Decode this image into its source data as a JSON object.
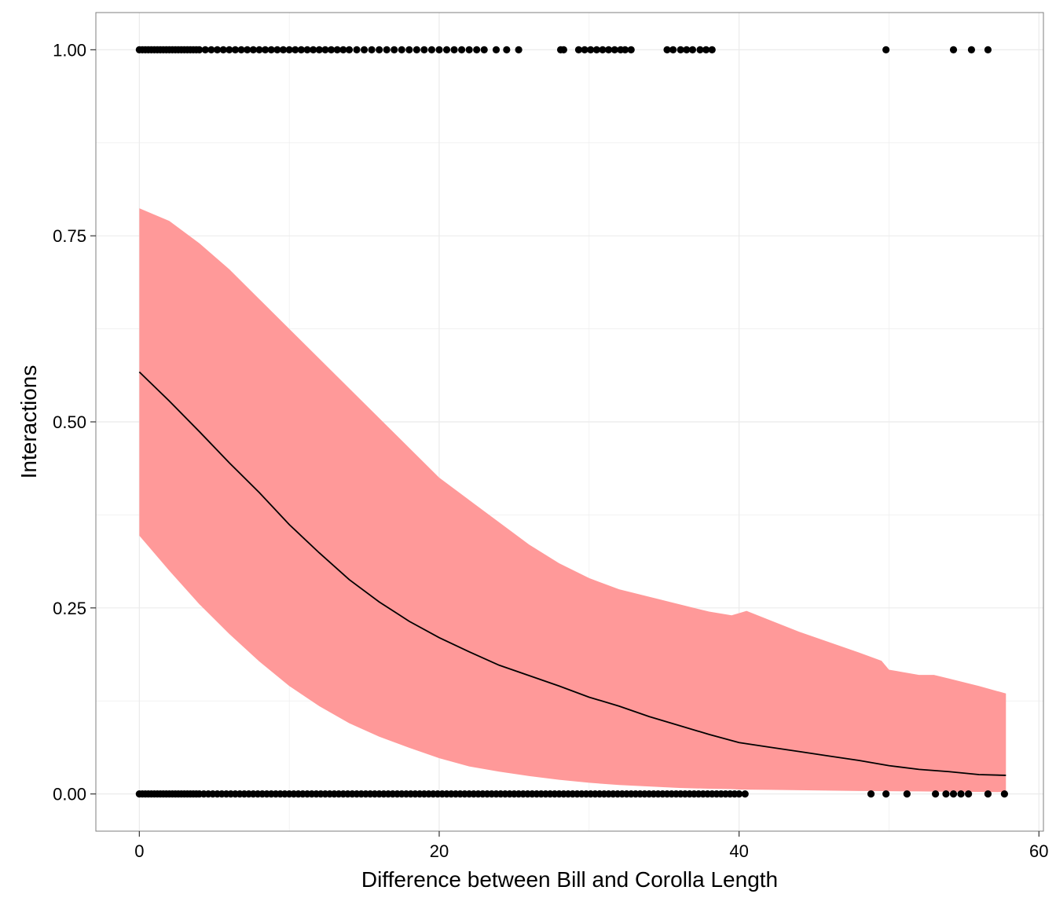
{
  "chart_data": {
    "type": "scatter",
    "title": "",
    "xlabel": "Difference between Bill and Corolla Length",
    "ylabel": "Interactions",
    "xlim": [
      -2.9,
      60.3
    ],
    "ylim": [
      -0.05,
      1.05
    ],
    "x_ticks": [
      0,
      20,
      40,
      60
    ],
    "x_tick_labels": [
      "0",
      "20",
      "40",
      "60"
    ],
    "y_ticks": [
      0,
      0.25,
      0.5,
      0.75,
      1.0
    ],
    "y_tick_labels": [
      "0.00",
      "0.25",
      "0.50",
      "0.75",
      "1.00"
    ],
    "grid": true,
    "legend": "none",
    "colors": {
      "ribbon": "#ff9999",
      "line": "#000000",
      "points": "#000000",
      "grid": "#ebebeb",
      "border": "#7f7f7f"
    },
    "series": [
      {
        "kind": "points",
        "y": 1,
        "x": [
          0,
          0.2,
          0.4,
          0.6,
          0.8,
          1,
          1.2,
          1.4,
          1.6,
          1.8,
          2,
          2.2,
          2.4,
          2.6,
          2.8,
          3,
          3.2,
          3.4,
          3.6,
          3.8,
          4,
          4.4,
          4.8,
          5.2,
          5.6,
          6,
          6.4,
          6.8,
          7.2,
          7.6,
          8,
          8.4,
          8.8,
          9.2,
          9.6,
          10,
          10.4,
          10.8,
          11.2,
          11.6,
          12,
          12.4,
          12.8,
          13.2,
          13.6,
          14,
          14.5,
          15,
          15.5,
          16,
          16.5,
          17,
          17.5,
          18,
          18.5,
          19,
          19.5,
          20,
          20.5,
          21,
          21.5,
          22,
          22.5,
          23,
          23.8,
          24.5,
          25.3,
          28.1,
          28.3,
          29.3,
          29.7,
          30.1,
          30.5,
          30.9,
          31.3,
          31.7,
          32.1,
          32.4,
          32.8,
          35.2,
          35.6,
          36.1,
          36.5,
          36.9,
          37.4,
          37.8,
          38.2,
          49.8,
          54.3,
          55.5,
          56.6
        ]
      },
      {
        "kind": "points",
        "y": 0,
        "x": [
          0,
          0.2,
          0.4,
          0.6,
          0.8,
          1,
          1.2,
          1.4,
          1.6,
          1.8,
          2,
          2.2,
          2.4,
          2.6,
          2.8,
          3,
          3.2,
          3.4,
          3.6,
          3.8,
          4,
          4.3,
          4.6,
          4.9,
          5.2,
          5.5,
          5.8,
          6.1,
          6.4,
          6.7,
          7,
          7.3,
          7.6,
          7.9,
          8.2,
          8.5,
          8.8,
          9.1,
          9.4,
          9.7,
          10,
          10.3,
          10.6,
          10.9,
          11.2,
          11.5,
          11.8,
          12.1,
          12.4,
          12.7,
          13,
          13.3,
          13.6,
          13.9,
          14.2,
          14.5,
          14.8,
          15.1,
          15.4,
          15.7,
          16,
          16.3,
          16.6,
          16.9,
          17.2,
          17.5,
          17.8,
          18.1,
          18.4,
          18.7,
          19,
          19.3,
          19.6,
          19.9,
          20.2,
          20.5,
          20.8,
          21.1,
          21.4,
          21.7,
          22,
          22.3,
          22.6,
          22.9,
          23.2,
          23.5,
          23.8,
          24.1,
          24.4,
          24.7,
          25,
          25.3,
          25.6,
          25.9,
          26.2,
          26.5,
          26.8,
          27.1,
          27.4,
          27.7,
          28,
          28.3,
          28.6,
          28.9,
          29.2,
          29.5,
          29.8,
          30.1,
          30.4,
          30.7,
          31,
          31.3,
          31.6,
          31.9,
          32.2,
          32.5,
          32.8,
          33.1,
          33.4,
          33.7,
          34,
          34.3,
          34.6,
          34.9,
          35.2,
          35.5,
          35.8,
          36.1,
          36.4,
          36.7,
          37,
          37.3,
          37.6,
          37.9,
          38.2,
          38.5,
          38.8,
          39.1,
          39.4,
          39.7,
          40,
          40.4,
          48.8,
          49.8,
          51.2,
          53.1,
          53.8,
          54.3,
          54.8,
          55.3,
          56.6,
          57.7
        ]
      },
      {
        "kind": "line",
        "name": "",
        "x": [
          0,
          2,
          4,
          6,
          8,
          10,
          12,
          14,
          16,
          18,
          20,
          22,
          24,
          26,
          28,
          30,
          32,
          34,
          36,
          38,
          40,
          42,
          44,
          46,
          48,
          50,
          52,
          54,
          56,
          57.8
        ],
        "y": [
          0.567,
          0.528,
          0.487,
          0.445,
          0.405,
          0.362,
          0.324,
          0.288,
          0.258,
          0.232,
          0.21,
          0.191,
          0.173,
          0.159,
          0.145,
          0.13,
          0.118,
          0.104,
          0.092,
          0.08,
          0.069,
          0.063,
          0.057,
          0.051,
          0.045,
          0.038,
          0.033,
          0.03,
          0.026,
          0.025
        ]
      },
      {
        "kind": "ribbon",
        "x": [
          0,
          2,
          4,
          6,
          8,
          10,
          12,
          14,
          16,
          18,
          20,
          22,
          24,
          26,
          28,
          30,
          32,
          34,
          36,
          38,
          39.5,
          40,
          40.5,
          42,
          44,
          46,
          48,
          49.5,
          50,
          52,
          53,
          54,
          56,
          57.8
        ],
        "lower": [
          0.347,
          0.3,
          0.255,
          0.215,
          0.178,
          0.145,
          0.118,
          0.095,
          0.077,
          0.062,
          0.048,
          0.037,
          0.03,
          0.024,
          0.019,
          0.015,
          0.012,
          0.01,
          0.008,
          0.007,
          0.0065,
          0.006,
          0.0058,
          0.0055,
          0.005,
          0.0045,
          0.004,
          0.0038,
          0.0037,
          0.0034,
          0.0032,
          0.003,
          0.0028,
          0.0025
        ],
        "upper": [
          0.787,
          0.77,
          0.74,
          0.705,
          0.665,
          0.625,
          0.585,
          0.545,
          0.505,
          0.465,
          0.425,
          0.395,
          0.365,
          0.335,
          0.31,
          0.29,
          0.275,
          0.265,
          0.255,
          0.245,
          0.24,
          0.243,
          0.246,
          0.234,
          0.218,
          0.204,
          0.19,
          0.179,
          0.167,
          0.16,
          0.16,
          0.155,
          0.145,
          0.135
        ]
      }
    ]
  }
}
